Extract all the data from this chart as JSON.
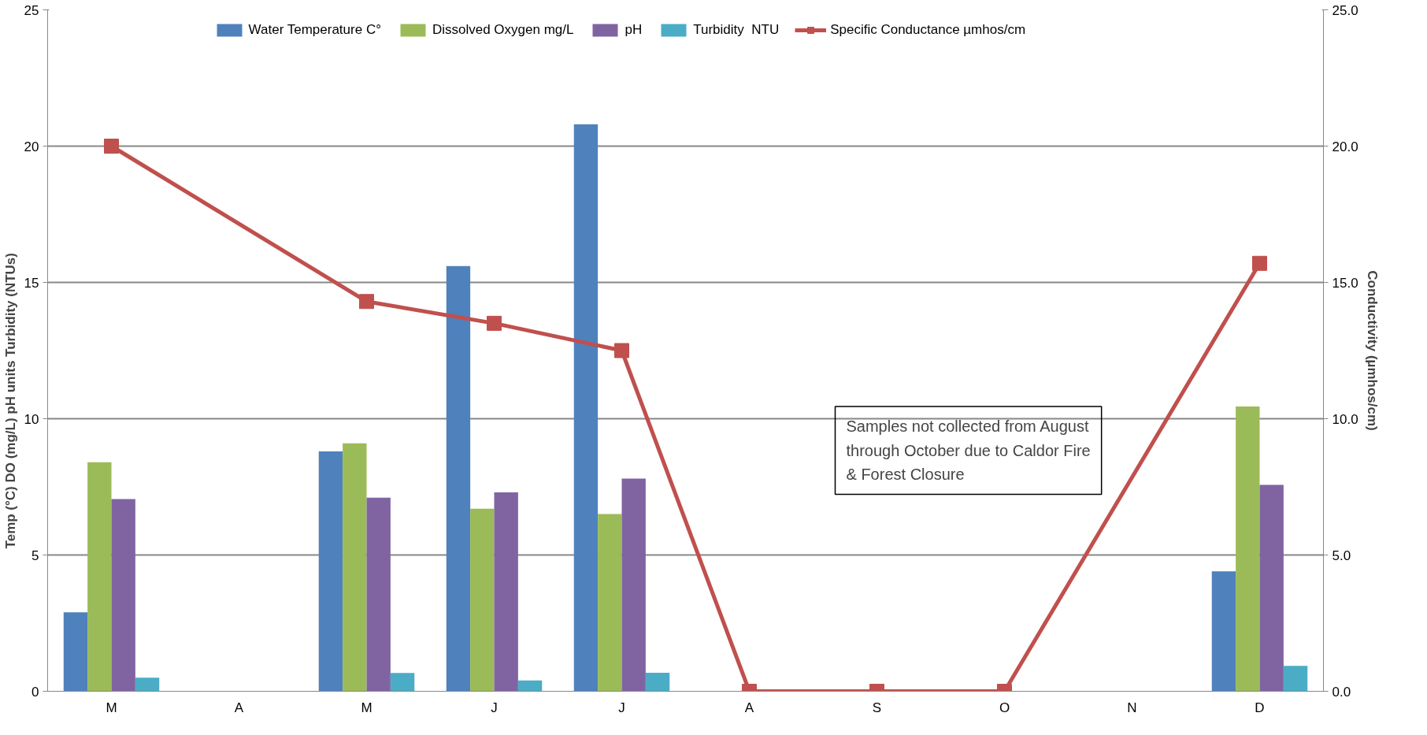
{
  "chart_data": {
    "type": "bar",
    "categories": [
      "M",
      "A",
      "M",
      "J",
      "J",
      "A",
      "S",
      "O",
      "N",
      "D"
    ],
    "ylabel": "Temp (°C)          DO (mg/L)          pH units          Turbidity (NTUs)",
    "y2label": "Conductivity (µmhos/cm)",
    "series": [
      {
        "name": "Water Temperature C°",
        "color": "#4f81bd",
        "values": [
          2.9,
          null,
          8.8,
          15.6,
          20.8,
          null,
          null,
          null,
          null,
          4.4
        ]
      },
      {
        "name": "Dissolved Oxygen mg/L",
        "color": "#9bbb59",
        "values": [
          8.4,
          null,
          9.1,
          6.7,
          6.5,
          null,
          null,
          null,
          null,
          10.45
        ]
      },
      {
        "name": "pH",
        "color": "#8064a2",
        "values": [
          7.05,
          null,
          7.1,
          7.3,
          7.8,
          null,
          null,
          null,
          null,
          7.57
        ]
      },
      {
        "name": "Turbidity  NTU",
        "color": "#4bacc6",
        "values": [
          0.5,
          null,
          0.67,
          0.4,
          0.68,
          null,
          null,
          null,
          null,
          0.93
        ]
      },
      {
        "name": "Specific Conductance µmhos/cm",
        "type": "line",
        "axis": "y2",
        "color": "#c0504d",
        "marker": "square",
        "values": [
          20.0,
          null,
          14.3,
          13.5,
          12.5,
          0.0,
          0.0,
          0.0,
          null,
          15.7
        ]
      }
    ],
    "ylim": [
      0,
      25
    ],
    "yticks": [
      0,
      5,
      10,
      15,
      20,
      25
    ],
    "y2lim": [
      0,
      25
    ],
    "y2ticks": [
      {
        "value": 0,
        "label": "0.0"
      },
      {
        "value": 5,
        "label": "5.0"
      },
      {
        "value": 10,
        "label": "10.0"
      },
      {
        "value": 15,
        "label": "15.0"
      },
      {
        "value": 20,
        "label": "20.0"
      },
      {
        "value": 25,
        "label": "25.0"
      }
    ],
    "grid": "y",
    "legend": "top",
    "annotations": [
      "Samples not collected from August\nthrough October due to Caldor Fire\n& Forest Closure"
    ]
  }
}
